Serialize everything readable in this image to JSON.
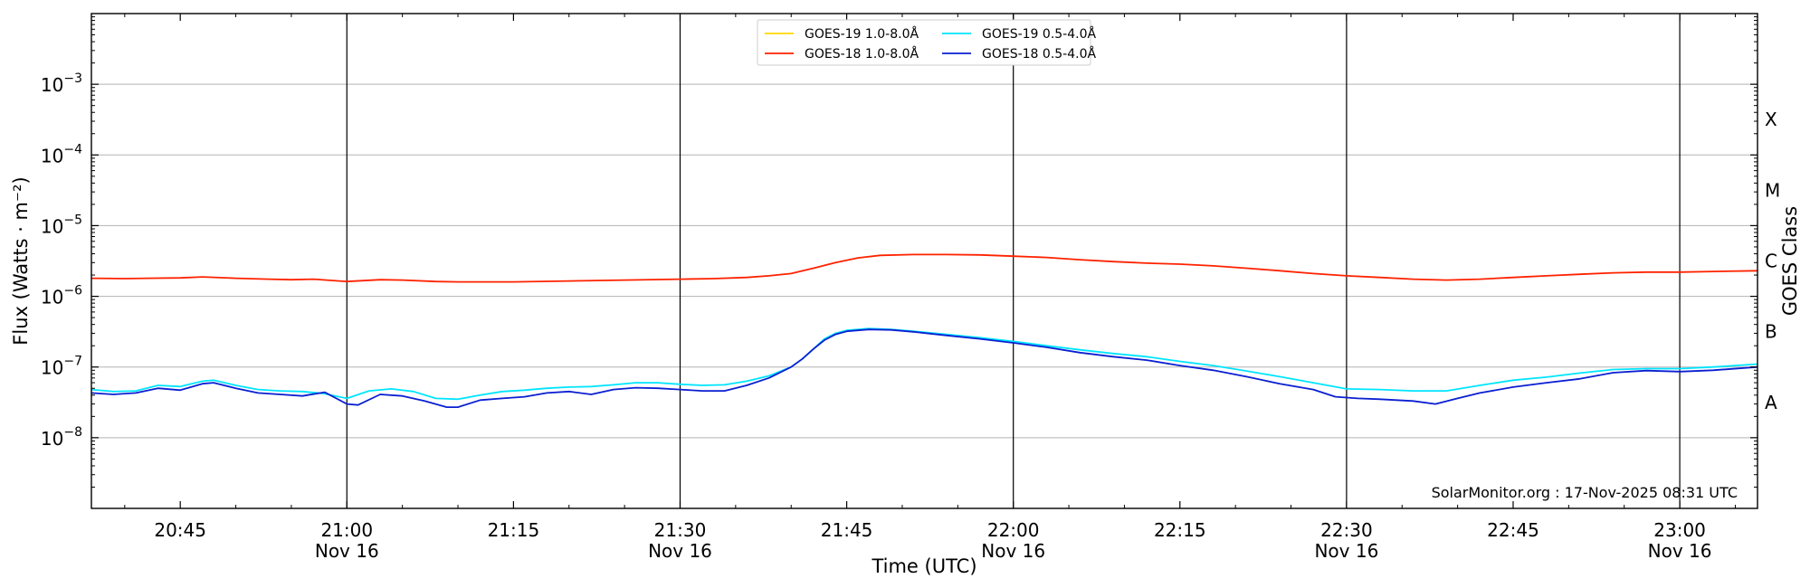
{
  "chart_data": {
    "type": "line",
    "xlabel": "Time (UTC)",
    "ylabel": "Flux (Watts · m⁻²)",
    "ylabel_right": "GOES Class",
    "y_scale": "log",
    "ylim": [
      1e-09,
      0.01
    ],
    "xlim": [
      "20:37",
      "23:07"
    ],
    "x_ticks": [
      {
        "t": "20:45",
        "label": "20:45",
        "sub": ""
      },
      {
        "t": "21:00",
        "label": "21:00",
        "sub": "Nov 16"
      },
      {
        "t": "21:15",
        "label": "21:15",
        "sub": ""
      },
      {
        "t": "21:30",
        "label": "21:30",
        "sub": "Nov 16"
      },
      {
        "t": "21:45",
        "label": "21:45",
        "sub": ""
      },
      {
        "t": "22:00",
        "label": "22:00",
        "sub": "Nov 16"
      },
      {
        "t": "22:15",
        "label": "22:15",
        "sub": ""
      },
      {
        "t": "22:30",
        "label": "22:30",
        "sub": "Nov 16"
      },
      {
        "t": "22:45",
        "label": "22:45",
        "sub": ""
      },
      {
        "t": "23:00",
        "label": "23:00",
        "sub": "Nov 16"
      }
    ],
    "y_ticks": [
      {
        "value": 0.001,
        "base": "10",
        "exp": "−3"
      },
      {
        "value": 0.0001,
        "base": "10",
        "exp": "−4"
      },
      {
        "value": 1e-05,
        "base": "10",
        "exp": "−5"
      },
      {
        "value": 1e-06,
        "base": "10",
        "exp": "−6"
      },
      {
        "value": 1e-07,
        "base": "10",
        "exp": "−7"
      },
      {
        "value": 1e-08,
        "base": "10",
        "exp": "−8"
      }
    ],
    "grid": true,
    "vertical_lines": [
      "21:00",
      "21:30",
      "22:00",
      "22:30",
      "23:00"
    ],
    "goes_classes": [
      {
        "label": "X",
        "value": 0.000316
      },
      {
        "label": "M",
        "value": 3.16e-05
      },
      {
        "label": "C",
        "value": 3.16e-06
      },
      {
        "label": "B",
        "value": 3.16e-07
      },
      {
        "label": "A",
        "value": 3.16e-08
      }
    ],
    "legend_position": "top-center",
    "series": [
      {
        "name": "GOES-19 1.0-8.0Å",
        "color": "#ffd700",
        "points": []
      },
      {
        "name": "GOES-18 1.0-8.0Å",
        "color": "#ff2200",
        "points": [
          [
            "20:37",
            1.8e-06
          ],
          [
            "20:40",
            1.78e-06
          ],
          [
            "20:42",
            1.8e-06
          ],
          [
            "20:45",
            1.82e-06
          ],
          [
            "20:47",
            1.88e-06
          ],
          [
            "20:50",
            1.8e-06
          ],
          [
            "20:53",
            1.75e-06
          ],
          [
            "20:55",
            1.72e-06
          ],
          [
            "20:57",
            1.75e-06
          ],
          [
            "21:00",
            1.62e-06
          ],
          [
            "21:03",
            1.72e-06
          ],
          [
            "21:05",
            1.7e-06
          ],
          [
            "21:08",
            1.62e-06
          ],
          [
            "21:10",
            1.6e-06
          ],
          [
            "21:13",
            1.6e-06
          ],
          [
            "21:15",
            1.6e-06
          ],
          [
            "21:20",
            1.65e-06
          ],
          [
            "21:25",
            1.7e-06
          ],
          [
            "21:30",
            1.75e-06
          ],
          [
            "21:33",
            1.78e-06
          ],
          [
            "21:36",
            1.85e-06
          ],
          [
            "21:38",
            1.95e-06
          ],
          [
            "21:40",
            2.1e-06
          ],
          [
            "21:42",
            2.5e-06
          ],
          [
            "21:44",
            3e-06
          ],
          [
            "21:46",
            3.5e-06
          ],
          [
            "21:48",
            3.8e-06
          ],
          [
            "21:51",
            3.9e-06
          ],
          [
            "21:54",
            3.9e-06
          ],
          [
            "21:57",
            3.85e-06
          ],
          [
            "22:00",
            3.7e-06
          ],
          [
            "22:03",
            3.55e-06
          ],
          [
            "22:06",
            3.3e-06
          ],
          [
            "22:09",
            3.1e-06
          ],
          [
            "22:12",
            2.95e-06
          ],
          [
            "22:15",
            2.85e-06
          ],
          [
            "22:18",
            2.7e-06
          ],
          [
            "22:21",
            2.5e-06
          ],
          [
            "22:24",
            2.3e-06
          ],
          [
            "22:27",
            2.1e-06
          ],
          [
            "22:30",
            1.95e-06
          ],
          [
            "22:33",
            1.85e-06
          ],
          [
            "22:36",
            1.75e-06
          ],
          [
            "22:39",
            1.7e-06
          ],
          [
            "22:42",
            1.75e-06
          ],
          [
            "22:45",
            1.85e-06
          ],
          [
            "22:48",
            1.95e-06
          ],
          [
            "22:51",
            2.05e-06
          ],
          [
            "22:54",
            2.15e-06
          ],
          [
            "22:57",
            2.2e-06
          ],
          [
            "23:00",
            2.2e-06
          ],
          [
            "23:03",
            2.25e-06
          ],
          [
            "23:07",
            2.3e-06
          ]
        ]
      },
      {
        "name": "GOES-19 0.5-4.0Å",
        "color": "#00e5ff",
        "points": [
          [
            "20:37",
            4.8e-08
          ],
          [
            "20:39",
            4.5e-08
          ],
          [
            "20:41",
            4.6e-08
          ],
          [
            "20:43",
            5.5e-08
          ],
          [
            "20:45",
            5.3e-08
          ],
          [
            "20:47",
            6.3e-08
          ],
          [
            "20:48",
            6.5e-08
          ],
          [
            "20:50",
            5.5e-08
          ],
          [
            "20:52",
            4.8e-08
          ],
          [
            "20:54",
            4.6e-08
          ],
          [
            "20:56",
            4.5e-08
          ],
          [
            "20:58",
            4.2e-08
          ],
          [
            "21:00",
            3.6e-08
          ],
          [
            "21:02",
            4.6e-08
          ],
          [
            "21:04",
            4.9e-08
          ],
          [
            "21:06",
            4.5e-08
          ],
          [
            "21:08",
            3.6e-08
          ],
          [
            "21:10",
            3.5e-08
          ],
          [
            "21:12",
            4e-08
          ],
          [
            "21:14",
            4.5e-08
          ],
          [
            "21:16",
            4.7e-08
          ],
          [
            "21:18",
            5e-08
          ],
          [
            "21:20",
            5.2e-08
          ],
          [
            "21:22",
            5.3e-08
          ],
          [
            "21:24",
            5.6e-08
          ],
          [
            "21:26",
            6e-08
          ],
          [
            "21:28",
            6e-08
          ],
          [
            "21:30",
            5.7e-08
          ],
          [
            "21:32",
            5.5e-08
          ],
          [
            "21:34",
            5.6e-08
          ],
          [
            "21:36",
            6.3e-08
          ],
          [
            "21:38",
            7.5e-08
          ],
          [
            "21:40",
            1e-07
          ],
          [
            "21:41",
            1.3e-07
          ],
          [
            "21:42",
            1.8e-07
          ],
          [
            "21:43",
            2.5e-07
          ],
          [
            "21:44",
            3e-07
          ],
          [
            "21:45",
            3.3e-07
          ],
          [
            "21:47",
            3.5e-07
          ],
          [
            "21:49",
            3.4e-07
          ],
          [
            "21:51",
            3.2e-07
          ],
          [
            "21:54",
            2.9e-07
          ],
          [
            "21:57",
            2.6e-07
          ],
          [
            "22:00",
            2.3e-07
          ],
          [
            "22:03",
            2e-07
          ],
          [
            "22:06",
            1.75e-07
          ],
          [
            "22:09",
            1.55e-07
          ],
          [
            "22:12",
            1.4e-07
          ],
          [
            "22:15",
            1.2e-07
          ],
          [
            "22:18",
            1.05e-07
          ],
          [
            "22:21",
            8.8e-08
          ],
          [
            "22:24",
            7.3e-08
          ],
          [
            "22:27",
            6e-08
          ],
          [
            "22:30",
            4.9e-08
          ],
          [
            "22:33",
            4.8e-08
          ],
          [
            "22:36",
            4.6e-08
          ],
          [
            "22:39",
            4.6e-08
          ],
          [
            "22:42",
            5.5e-08
          ],
          [
            "22:45",
            6.5e-08
          ],
          [
            "22:48",
            7.2e-08
          ],
          [
            "22:51",
            8.2e-08
          ],
          [
            "22:54",
            9.2e-08
          ],
          [
            "22:57",
            9.5e-08
          ],
          [
            "23:00",
            9.5e-08
          ],
          [
            "23:03",
            1e-07
          ],
          [
            "23:07",
            1.1e-07
          ]
        ]
      },
      {
        "name": "GOES-18 0.5-4.0Å",
        "color": "#0a1fd1",
        "points": [
          [
            "20:37",
            4.3e-08
          ],
          [
            "20:39",
            4.1e-08
          ],
          [
            "20:41",
            4.3e-08
          ],
          [
            "20:43",
            5e-08
          ],
          [
            "20:45",
            4.7e-08
          ],
          [
            "20:47",
            5.8e-08
          ],
          [
            "20:48",
            6e-08
          ],
          [
            "20:50",
            5e-08
          ],
          [
            "20:52",
            4.3e-08
          ],
          [
            "20:54",
            4.1e-08
          ],
          [
            "20:56",
            3.9e-08
          ],
          [
            "20:58",
            4.4e-08
          ],
          [
            "21:00",
            3e-08
          ],
          [
            "21:01",
            2.9e-08
          ],
          [
            "21:03",
            4.1e-08
          ],
          [
            "21:05",
            3.9e-08
          ],
          [
            "21:07",
            3.3e-08
          ],
          [
            "21:09",
            2.7e-08
          ],
          [
            "21:10",
            2.7e-08
          ],
          [
            "21:12",
            3.4e-08
          ],
          [
            "21:14",
            3.6e-08
          ],
          [
            "21:16",
            3.8e-08
          ],
          [
            "21:18",
            4.3e-08
          ],
          [
            "21:20",
            4.5e-08
          ],
          [
            "21:22",
            4.1e-08
          ],
          [
            "21:24",
            4.8e-08
          ],
          [
            "21:26",
            5.1e-08
          ],
          [
            "21:28",
            5e-08
          ],
          [
            "21:30",
            4.8e-08
          ],
          [
            "21:32",
            4.6e-08
          ],
          [
            "21:34",
            4.6e-08
          ],
          [
            "21:36",
            5.5e-08
          ],
          [
            "21:38",
            7e-08
          ],
          [
            "21:40",
            1e-07
          ],
          [
            "21:41",
            1.3e-07
          ],
          [
            "21:42",
            1.8e-07
          ],
          [
            "21:43",
            2.4e-07
          ],
          [
            "21:44",
            2.9e-07
          ],
          [
            "21:45",
            3.2e-07
          ],
          [
            "21:47",
            3.4e-07
          ],
          [
            "21:49",
            3.35e-07
          ],
          [
            "21:51",
            3.15e-07
          ],
          [
            "21:54",
            2.8e-07
          ],
          [
            "21:57",
            2.5e-07
          ],
          [
            "22:00",
            2.2e-07
          ],
          [
            "22:03",
            1.9e-07
          ],
          [
            "22:06",
            1.6e-07
          ],
          [
            "22:09",
            1.4e-07
          ],
          [
            "22:12",
            1.25e-07
          ],
          [
            "22:15",
            1.05e-07
          ],
          [
            "22:18",
            9e-08
          ],
          [
            "22:21",
            7.3e-08
          ],
          [
            "22:24",
            5.8e-08
          ],
          [
            "22:27",
            4.8e-08
          ],
          [
            "22:29",
            3.8e-08
          ],
          [
            "22:31",
            3.6e-08
          ],
          [
            "22:33",
            3.5e-08
          ],
          [
            "22:36",
            3.3e-08
          ],
          [
            "22:38",
            3e-08
          ],
          [
            "22:40",
            3.6e-08
          ],
          [
            "22:42",
            4.3e-08
          ],
          [
            "22:45",
            5.2e-08
          ],
          [
            "22:48",
            6e-08
          ],
          [
            "22:51",
            6.8e-08
          ],
          [
            "22:54",
            8.3e-08
          ],
          [
            "22:57",
            8.9e-08
          ],
          [
            "23:00",
            8.6e-08
          ],
          [
            "23:03",
            9e-08
          ],
          [
            "23:07",
            1e-07
          ]
        ]
      }
    ]
  },
  "credit": "SolarMonitor.org : 17-Nov-2025 08:31 UTC"
}
